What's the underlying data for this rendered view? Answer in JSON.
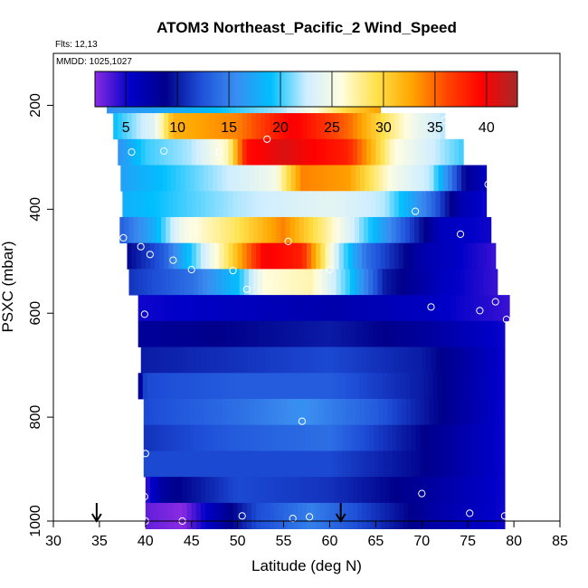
{
  "chart_data": {
    "type": "heatmap",
    "title": "ATOM3 Northeast_Pacific_2 Wind_Speed",
    "annotations": [
      "Flts: 12,13",
      "MMDD: 1025,1027"
    ],
    "xlabel": "Latitude (deg N)",
    "ylabel": "PSXC (mbar)",
    "xlim": [
      30,
      85
    ],
    "ylim": [
      1000,
      100
    ],
    "x_ticks": [
      "30",
      "35",
      "40",
      "45",
      "50",
      "55",
      "60",
      "65",
      "70",
      "75",
      "80",
      "85"
    ],
    "y_ticks": [
      "200",
      "400",
      "600",
      "800",
      "1000"
    ],
    "colorbar": {
      "range": [
        2,
        43
      ],
      "ticks": [
        "5",
        "10",
        "15",
        "20",
        "25",
        "30",
        "35",
        "40"
      ],
      "colors": [
        "#8a2be2",
        "#0000c8",
        "#00008b",
        "#1e4fd8",
        "#3a8cf0",
        "#00bfff",
        "#cfeeff",
        "#fffde0",
        "#ffe14a",
        "#ffa500",
        "#ff4500",
        "#ff0000",
        "#a52a2a"
      ]
    },
    "bands": [
      {
        "p": 190,
        "lat": [
          35.8,
          65.5
        ],
        "ws": [
          [
            35.8,
            16
          ],
          [
            45,
            18
          ],
          [
            55,
            22
          ],
          [
            62,
            30
          ],
          [
            65.5,
            33
          ]
        ]
      },
      {
        "p": 240,
        "lat": [
          36.5,
          72.5
        ],
        "ws": [
          [
            36.5,
            19
          ],
          [
            41,
            24
          ],
          [
            43,
            32
          ],
          [
            50,
            34
          ],
          [
            56,
            40
          ],
          [
            62,
            35
          ],
          [
            66,
            29
          ],
          [
            69,
            25
          ],
          [
            72.5,
            22
          ]
        ]
      },
      {
        "p": 290,
        "lat": [
          37.0,
          74.5
        ],
        "ws": [
          [
            37,
            16
          ],
          [
            40,
            20
          ],
          [
            45,
            22
          ],
          [
            49,
            27
          ],
          [
            51,
            39
          ],
          [
            55,
            41
          ],
          [
            62,
            38
          ],
          [
            67,
            26
          ],
          [
            74.5,
            20
          ]
        ]
      },
      {
        "p": 340,
        "lat": [
          37.3,
          77.0
        ],
        "ws": [
          [
            37.3,
            17
          ],
          [
            46,
            21
          ],
          [
            54,
            25
          ],
          [
            57,
            34
          ],
          [
            62,
            33
          ],
          [
            67,
            25
          ],
          [
            71,
            22
          ],
          [
            75,
            8
          ],
          [
            77,
            6
          ]
        ]
      },
      {
        "p": 390,
        "lat": [
          37.5,
          77.0
        ],
        "ws": [
          [
            37.5,
            18
          ],
          [
            50,
            22
          ],
          [
            60,
            24
          ],
          [
            66,
            22
          ],
          [
            71,
            14
          ],
          [
            74,
            7
          ],
          [
            77,
            5
          ]
        ]
      },
      {
        "p": 440,
        "lat": [
          37.2,
          77.5
        ],
        "ws": [
          [
            37.2,
            13
          ],
          [
            41,
            18
          ],
          [
            44,
            25
          ],
          [
            50,
            29
          ],
          [
            55,
            34
          ],
          [
            60,
            27
          ],
          [
            63,
            22
          ],
          [
            68,
            13
          ],
          [
            72,
            6
          ],
          [
            77.5,
            5
          ]
        ]
      },
      {
        "p": 490,
        "lat": [
          38.0,
          78.0
        ],
        "ws": [
          [
            38,
            9
          ],
          [
            42,
            13
          ],
          [
            46,
            22
          ],
          [
            49,
            29
          ],
          [
            53,
            40
          ],
          [
            57,
            38
          ],
          [
            61,
            22
          ],
          [
            64,
            14
          ],
          [
            70,
            7
          ],
          [
            78,
            4
          ]
        ]
      },
      {
        "p": 540,
        "lat": [
          38.2,
          78.2
        ],
        "ws": [
          [
            38.2,
            11
          ],
          [
            45,
            14
          ],
          [
            50,
            19
          ],
          [
            53,
            26
          ],
          [
            58,
            27
          ],
          [
            62,
            20
          ],
          [
            66,
            10
          ],
          [
            72,
            6
          ],
          [
            78.2,
            4
          ]
        ]
      },
      {
        "p": 590,
        "lat": [
          39.2,
          79.5
        ],
        "ws": [
          [
            39.2,
            5
          ],
          [
            50,
            6
          ],
          [
            60,
            7
          ],
          [
            70,
            6
          ],
          [
            79.5,
            4
          ]
        ]
      },
      {
        "p": 640,
        "lat": [
          39.2,
          79.0
        ],
        "ws": [
          [
            39.2,
            8
          ],
          [
            50,
            9
          ],
          [
            60,
            10
          ],
          [
            70,
            8
          ],
          [
            79,
            5
          ]
        ]
      },
      {
        "p": 690,
        "lat": [
          39.5,
          79.0
        ],
        "ws": [
          [
            39.5,
            10
          ],
          [
            50,
            11
          ],
          [
            60,
            12
          ],
          [
            70,
            10
          ],
          [
            79,
            5
          ]
        ]
      },
      {
        "p": 740,
        "lat": [
          39.2,
          79.0
        ],
        "ws": [
          [
            39.2,
            6
          ],
          [
            40,
            12
          ],
          [
            50,
            13
          ],
          [
            60,
            13
          ],
          [
            70,
            10
          ],
          [
            79,
            5
          ]
        ]
      },
      {
        "p": 790,
        "lat": [
          39.8,
          79.0
        ],
        "ws": [
          [
            39.8,
            12
          ],
          [
            50,
            14
          ],
          [
            57,
            16
          ],
          [
            65,
            13
          ],
          [
            70,
            10
          ],
          [
            79,
            5
          ]
        ]
      },
      {
        "p": 840,
        "lat": [
          39.8,
          79.0
        ],
        "ws": [
          [
            39.8,
            11
          ],
          [
            50,
            13
          ],
          [
            60,
            14
          ],
          [
            70,
            9
          ],
          [
            79,
            5
          ]
        ]
      },
      {
        "p": 890,
        "lat": [
          39.8,
          79.0
        ],
        "ws": [
          [
            39.8,
            12
          ],
          [
            50,
            12
          ],
          [
            60,
            12
          ],
          [
            70,
            9
          ],
          [
            79,
            5
          ]
        ]
      },
      {
        "p": 940,
        "lat": [
          40.0,
          79.0
        ],
        "ws": [
          [
            40,
            4
          ],
          [
            42,
            8
          ],
          [
            50,
            12
          ],
          [
            60,
            11
          ],
          [
            70,
            8
          ],
          [
            79,
            5
          ]
        ]
      },
      {
        "p": 990,
        "lat": [
          40.0,
          79.0
        ],
        "ws": [
          [
            40,
            3
          ],
          [
            44,
            2
          ],
          [
            47,
            6
          ],
          [
            52,
            12
          ],
          [
            58,
            15
          ],
          [
            65,
            11
          ],
          [
            72,
            7
          ],
          [
            79,
            5
          ]
        ]
      }
    ],
    "sample_points": [
      [
        36.1,
        197
      ],
      [
        65.5,
        185
      ],
      [
        72.5,
        228
      ],
      [
        38.5,
        290
      ],
      [
        42,
        288
      ],
      [
        48,
        290
      ],
      [
        53.2,
        265
      ],
      [
        77.2,
        352
      ],
      [
        69.3,
        404
      ],
      [
        74.2,
        448
      ],
      [
        37.6,
        455
      ],
      [
        39.5,
        472
      ],
      [
        40.5,
        487
      ],
      [
        43,
        498
      ],
      [
        45,
        516
      ],
      [
        49.5,
        518
      ],
      [
        55.5,
        462
      ],
      [
        60,
        516
      ],
      [
        51,
        554
      ],
      [
        39.9,
        602
      ],
      [
        71,
        588
      ],
      [
        76.3,
        595
      ],
      [
        78,
        578
      ],
      [
        79.2,
        612
      ],
      [
        57,
        808
      ],
      [
        40,
        870
      ],
      [
        70,
        947
      ],
      [
        39.9,
        953
      ],
      [
        40,
        1000
      ],
      [
        44,
        1000
      ],
      [
        50.5,
        990
      ],
      [
        56,
        995
      ],
      [
        57.8,
        992
      ],
      [
        75.2,
        985
      ],
      [
        79,
        990
      ]
    ],
    "markers": [
      34.7,
      61.2
    ],
    "grid": false,
    "legend": "colorbar top"
  }
}
